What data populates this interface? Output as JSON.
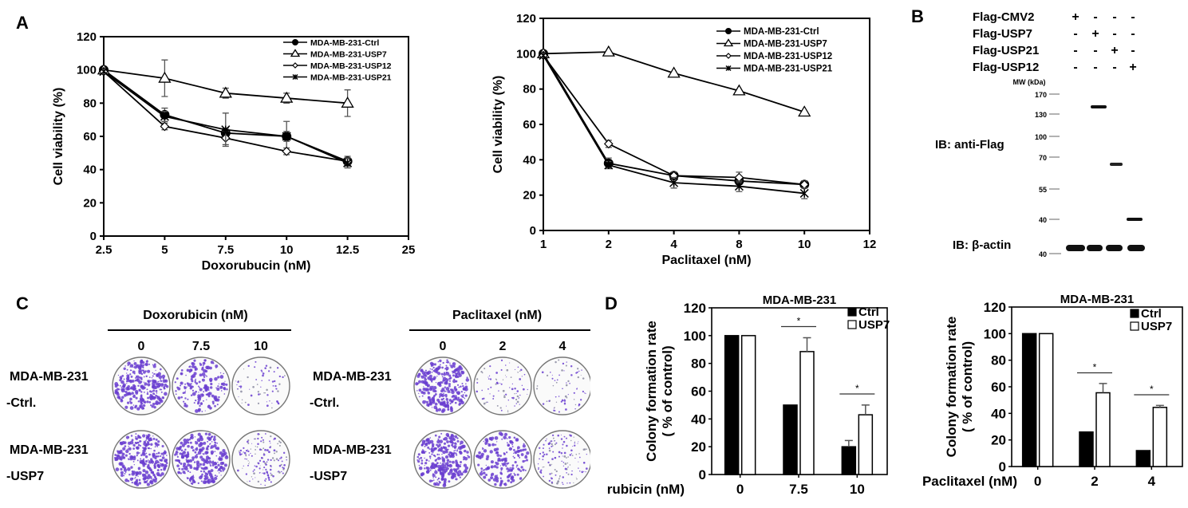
{
  "panels": {
    "A": "A",
    "B": "B",
    "C": "C",
    "D": "D"
  },
  "chart_data": [
    {
      "id": "doxorubicin-viability",
      "type": "line",
      "title": "",
      "xlabel": "Doxorubucin (nM)",
      "ylabel": "Cell viability (%)",
      "x_ticks": [
        "2.5",
        "5",
        "7.5",
        "10",
        "12.5",
        "25"
      ],
      "categories": [
        "2.5",
        "5",
        "7.5",
        "10",
        "12.5"
      ],
      "ylim": [
        0,
        120
      ],
      "y_ticks": [
        0,
        20,
        40,
        60,
        80,
        100,
        120
      ],
      "legend_position": "top-right",
      "series": [
        {
          "name": "MDA-MB-231-Ctrl",
          "marker": "filled-circle",
          "values": [
            100,
            73,
            62,
            60,
            45
          ],
          "errors": [
            1,
            4,
            3,
            9,
            3
          ]
        },
        {
          "name": "MDA-MB-231-USP7",
          "marker": "open-triangle",
          "values": [
            100,
            95,
            86,
            83,
            80
          ],
          "errors": [
            1,
            11,
            3,
            3,
            8
          ]
        },
        {
          "name": "MDA-MB-231-USP12",
          "marker": "open-diamond",
          "values": [
            99,
            66,
            59,
            51,
            45
          ],
          "errors": [
            1,
            2,
            4,
            2,
            2
          ]
        },
        {
          "name": "MDA-MB-231-USP21",
          "marker": "star",
          "values": [
            99,
            72,
            64,
            60,
            44
          ],
          "errors": [
            1,
            3,
            10,
            3,
            3
          ]
        }
      ]
    },
    {
      "id": "paclitaxel-viability",
      "type": "line",
      "title": "",
      "xlabel": "Paclitaxel (nM)",
      "ylabel": "Cell viability (%)",
      "x_ticks": [
        "1",
        "2",
        "4",
        "8",
        "10",
        "12"
      ],
      "categories": [
        "1",
        "2",
        "4",
        "8",
        "10"
      ],
      "ylim": [
        0,
        120
      ],
      "y_ticks": [
        0,
        20,
        40,
        60,
        80,
        100,
        120
      ],
      "legend_position": "top-right",
      "series": [
        {
          "name": "MDA-MB-231-Ctrl",
          "marker": "filled-circle",
          "values": [
            100,
            38,
            31,
            28,
            26
          ],
          "errors": [
            1,
            3,
            2,
            2,
            2
          ]
        },
        {
          "name": "MDA-MB-231-USP7",
          "marker": "open-triangle",
          "values": [
            100,
            101,
            89,
            79,
            67
          ],
          "errors": [
            1,
            1,
            1,
            1,
            1
          ]
        },
        {
          "name": "MDA-MB-231-USP12",
          "marker": "open-diamond",
          "values": [
            99,
            49,
            31,
            30,
            26
          ],
          "errors": [
            1,
            2,
            2,
            3,
            2
          ]
        },
        {
          "name": "MDA-MB-231-USP21",
          "marker": "star",
          "values": [
            99,
            37,
            27,
            25,
            21
          ],
          "errors": [
            1,
            2,
            3,
            3,
            3
          ]
        }
      ]
    },
    {
      "id": "colony-doxorubicin",
      "type": "bar",
      "title": "MDA-MB-231",
      "xlabel": "Doxorubicin (nM)",
      "ylabel": "Colony formation rate\n( % of control)",
      "categories": [
        "0",
        "7.5",
        "10"
      ],
      "ylim": [
        0,
        120
      ],
      "y_ticks": [
        0,
        20,
        40,
        60,
        80,
        100,
        120
      ],
      "legend_position": "top-right",
      "series": [
        {
          "name": "Ctrl",
          "fill": "black",
          "values": [
            100,
            50,
            20
          ],
          "errors": [
            0,
            0,
            4.5
          ]
        },
        {
          "name": "USP7",
          "fill": "white",
          "values": [
            100,
            88.5,
            43
          ],
          "errors": [
            0,
            10,
            7
          ]
        }
      ],
      "significance": [
        {
          "category": "7.5",
          "label": "*"
        },
        {
          "category": "10",
          "label": "*"
        }
      ]
    },
    {
      "id": "colony-paclitaxel",
      "type": "bar",
      "title": "MDA-MB-231",
      "xlabel": "Paclitaxel (nM)",
      "ylabel": "Colony formation rate\n( % of control)",
      "categories": [
        "0",
        "2",
        "4"
      ],
      "ylim": [
        0,
        120
      ],
      "y_ticks": [
        0,
        20,
        40,
        60,
        80,
        100,
        120
      ],
      "legend_position": "top-right",
      "series": [
        {
          "name": "Ctrl",
          "fill": "black",
          "values": [
            100,
            26,
            12
          ],
          "errors": [
            0,
            0,
            0
          ]
        },
        {
          "name": "USP7",
          "fill": "white",
          "values": [
            100,
            55.5,
            44.5
          ],
          "errors": [
            0,
            7,
            1.5
          ]
        }
      ],
      "significance": [
        {
          "category": "2",
          "label": "*"
        },
        {
          "category": "4",
          "label": "*"
        }
      ]
    }
  ],
  "western_blot": {
    "conditions": [
      {
        "label": "Flag-CMV2",
        "lanes": [
          "+",
          "-",
          "-",
          "-"
        ]
      },
      {
        "label": "Flag-USP7",
        "lanes": [
          "-",
          "+",
          "-",
          "-"
        ]
      },
      {
        "label": "Flag-USP21",
        "lanes": [
          "-",
          "-",
          "+",
          "-"
        ]
      },
      {
        "label": "Flag-USP12",
        "lanes": [
          "-",
          "-",
          "-",
          "+"
        ]
      }
    ],
    "mw_label": "MW (kDa)",
    "markers": [
      "170",
      "130",
      "100",
      "70",
      "55",
      "40"
    ],
    "actin_marker": "40",
    "ib_flag": "IB: anti-Flag",
    "ib_actin": "IB: β-actin"
  },
  "colony_assay": {
    "doxorubicin": {
      "header": "Doxorubicin (nM)",
      "doses": [
        "0",
        "7.5",
        "10"
      ],
      "rows": [
        {
          "line1": "MDA-MB-231",
          "line2": "-Ctrl.",
          "density": [
            1.0,
            0.55,
            0.15
          ]
        },
        {
          "line1": "MDA-MB-231",
          "line2": "-USP7",
          "density": [
            1.0,
            0.9,
            0.45
          ]
        }
      ]
    },
    "paclitaxel": {
      "header": "Paclitaxel (nM)",
      "doses": [
        "0",
        "2",
        "4"
      ],
      "rows": [
        {
          "line1": "MDA-MB-231",
          "line2": "-Ctrl.",
          "density": [
            1.0,
            0.2,
            0.15
          ]
        },
        {
          "line1": "MDA-MB-231",
          "line2": "-USP7",
          "density": [
            1.0,
            0.6,
            0.4
          ]
        }
      ]
    },
    "stain_color": "#6a3ed0"
  }
}
